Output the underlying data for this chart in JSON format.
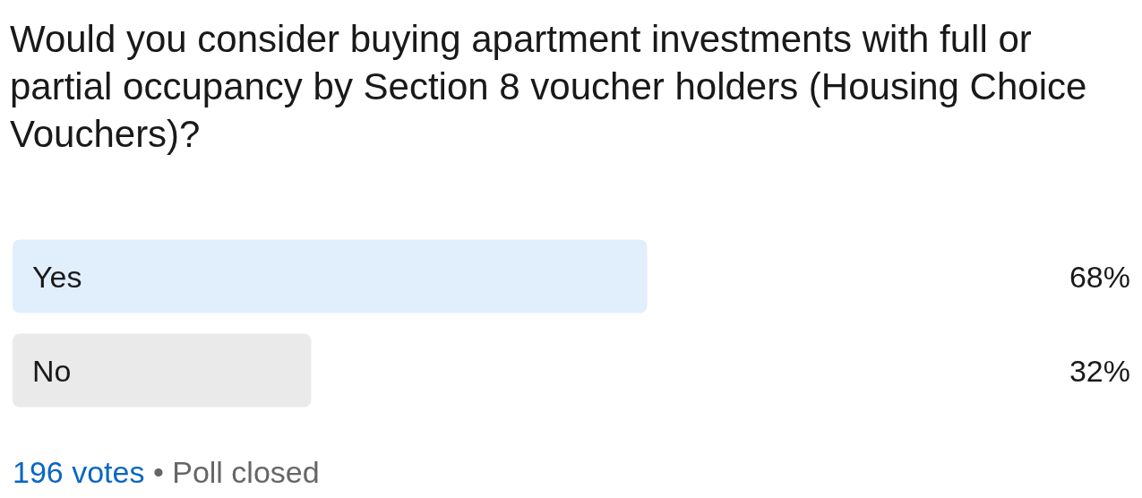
{
  "chart_data": {
    "type": "bar",
    "orientation": "horizontal",
    "title": "Would you consider buying apartment investments with full or partial occupancy by Section 8 voucher holders (Housing Choice Vouchers)?",
    "categories": [
      "Yes",
      "No"
    ],
    "values": [
      68,
      32
    ],
    "colors": [
      "#e1effd",
      "#eaeaea"
    ],
    "value_labels": [
      "68%",
      "32%"
    ],
    "tick_labels": "y",
    "annotations": [
      "196 votes",
      "• Poll closed"
    ]
  }
}
